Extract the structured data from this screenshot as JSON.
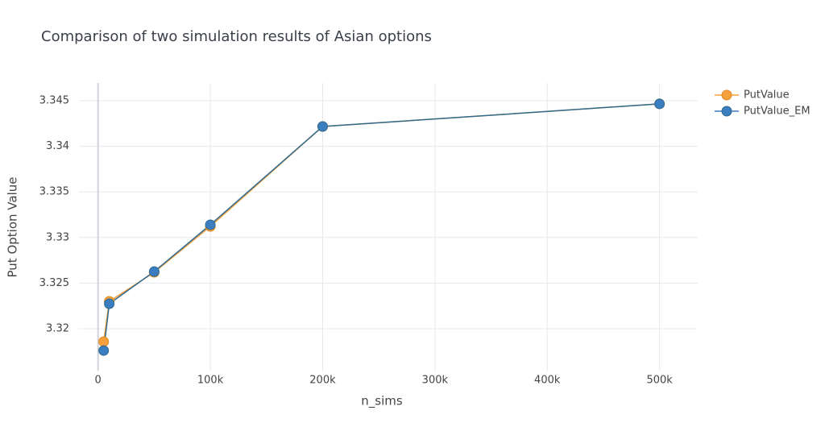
{
  "chart_data": {
    "type": "line",
    "title": "Comparison of two simulation results of Asian options",
    "xlabel": "n_sims",
    "ylabel": "Put Option Value",
    "x": [
      5000,
      10000,
      50000,
      100000,
      200000,
      500000
    ],
    "series": [
      {
        "name": "PutValue",
        "color": "#f5a03c",
        "values": [
          3.31859,
          3.323,
          3.32618,
          3.33122,
          3.34217,
          3.34465
        ]
      },
      {
        "name": "PutValue_EM",
        "color": "#3a7dc0",
        "values": [
          3.31761,
          3.32274,
          3.32627,
          3.3314,
          3.34217,
          3.34465
        ]
      }
    ],
    "xlim": [
      -17000,
      534000
    ],
    "xticks": [
      0,
      {
        "value": 100000,
        "label": "100k"
      },
      {
        "value": 200000,
        "label": "200k"
      },
      {
        "value": 300000,
        "label": "300k"
      },
      {
        "value": 400000,
        "label": "400k"
      },
      {
        "value": 500000,
        "label": "500k"
      }
    ],
    "ylim": [
      3.31541,
      3.34694
    ],
    "yticks": [
      3.32,
      3.325,
      3.33,
      3.335,
      3.34,
      3.345
    ],
    "grid": true,
    "legend": "top-right"
  }
}
